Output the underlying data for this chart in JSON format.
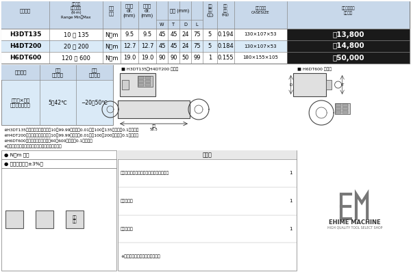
{
  "bg_color": "#ffffff",
  "header_bg": "#c8d8ea",
  "row1_bg": "#ffffff",
  "row2_bg": "#daeaf7",
  "row3_bg": "#ffffff",
  "price_bg": "#1a1a1a",
  "lower_bg": "#daeaf7",
  "lower_header_bg": "#c8d8ea",
  "rows": [
    {
      "model": "H3DT135",
      "range": "10 〜 135",
      "unit": "N・m",
      "dr_in": "9.5",
      "dr_out": "9.5",
      "W": "45",
      "T": "45",
      "D": "24",
      "L": "75",
      "qty": "5",
      "weight": "0.194",
      "case": "130×107×53",
      "price": "￥13,800"
    },
    {
      "model": "H4DT200",
      "range": "20 〜 200",
      "unit": "N・m",
      "dr_in": "12.7",
      "dr_out": "12.7",
      "W": "45",
      "T": "45",
      "D": "24",
      "L": "75",
      "qty": "5",
      "weight": "0.184",
      "case": "130×107×53",
      "price": "￥14,800"
    },
    {
      "model": "H6DT600",
      "range": "120 〜 600",
      "unit": "N・m",
      "dr_in": "19.0",
      "dr_out": "19.0",
      "W": "90",
      "T": "90",
      "D": "50",
      "L": "99",
      "qty": "1",
      "weight": "0.155",
      "case": "180×155×105",
      "price": "￥50,000"
    }
  ],
  "notes": [
    "※H3DT135のトルク表示桁数は、10～99.99の区間「0.01」、100～135の区間「0.1」です。",
    "※H4DT200のトルク表示桁数は、10～99.99の区間「0.01」、100～200の区間「0.1」です。",
    "※H6DT600のトルク表示桁数は、60～600の区間「0.1」です。",
    "※本体質量に、電池の質量は含まれておりません。"
  ],
  "accessories": [
    [
      "校正証明書（トレーサビリティ体系図付）",
      "1"
    ],
    [
      "取扱説明書",
      "1"
    ],
    [
      "樹脂ケース",
      "1"
    ],
    [
      "※単４形アルカリ乾電池（別売）",
      ""
    ]
  ],
  "brand_name": "EHIME MACHINE",
  "brand_tagline": "HIGH QUALITY TOOL SELECT SHOP"
}
